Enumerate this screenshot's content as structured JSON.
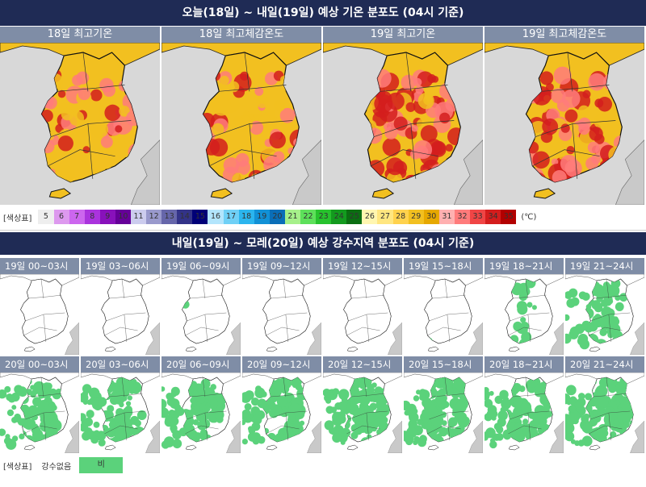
{
  "temp_section": {
    "title": "오늘(18일) ~ 내일(19일) 예상 기온 분포도 (04시 기준)"
  },
  "temp_panels": [
    {
      "label": "18일 최고기온",
      "intensity": 0.55
    },
    {
      "label": "18일 최고체감온도",
      "intensity": 0.5
    },
    {
      "label": "19일 최고기온",
      "intensity": 0.8
    },
    {
      "label": "19일 최고체감온도",
      "intensity": 0.75
    }
  ],
  "temp_legend": {
    "title": "[색상표]",
    "unit": "(℃)",
    "cells": [
      {
        "label": "5",
        "color": "#eeeeee",
        "text": "#333"
      },
      {
        "label": "6",
        "color": "#dd99ee",
        "text": "#333"
      },
      {
        "label": "7",
        "color": "#cc66ee",
        "text": "#333"
      },
      {
        "label": "8",
        "color": "#aa33dd",
        "text": "#333"
      },
      {
        "label": "9",
        "color": "#8811bb",
        "text": "#333"
      },
      {
        "label": "10",
        "color": "#660099",
        "text": "#333"
      },
      {
        "label": "11",
        "color": "#ccccee",
        "text": "#333"
      },
      {
        "label": "12",
        "color": "#9999cc",
        "text": "#333"
      },
      {
        "label": "13",
        "color": "#6666aa",
        "text": "#333"
      },
      {
        "label": "14",
        "color": "#333388",
        "text": "#333"
      },
      {
        "label": "15",
        "color": "#000077",
        "text": "#333"
      },
      {
        "label": "16",
        "color": "#b3e5fc",
        "text": "#333"
      },
      {
        "label": "17",
        "color": "#6fd0f6",
        "text": "#333"
      },
      {
        "label": "18",
        "color": "#2bb5ee",
        "text": "#333"
      },
      {
        "label": "19",
        "color": "#1191d6",
        "text": "#333"
      },
      {
        "label": "20",
        "color": "#0a6eb8",
        "text": "#333"
      },
      {
        "label": "21",
        "color": "#a6f08a",
        "text": "#333"
      },
      {
        "label": "22",
        "color": "#5de05a",
        "text": "#333"
      },
      {
        "label": "23",
        "color": "#27c22d",
        "text": "#333"
      },
      {
        "label": "24",
        "color": "#139a1e",
        "text": "#333"
      },
      {
        "label": "25",
        "color": "#0b6e12",
        "text": "#333"
      },
      {
        "label": "26",
        "color": "#fff6b0",
        "text": "#333"
      },
      {
        "label": "27",
        "color": "#ffe680",
        "text": "#333"
      },
      {
        "label": "28",
        "color": "#ffd24d",
        "text": "#333"
      },
      {
        "label": "29",
        "color": "#f2c020",
        "text": "#333"
      },
      {
        "label": "30",
        "color": "#e6a800",
        "text": "#333"
      },
      {
        "label": "31",
        "color": "#ffb0b0",
        "text": "#333"
      },
      {
        "label": "32",
        "color": "#ff7b7b",
        "text": "#333"
      },
      {
        "label": "33",
        "color": "#f04545",
        "text": "#333"
      },
      {
        "label": "34",
        "color": "#d41d1d",
        "text": "#333"
      },
      {
        "label": "35",
        "color": "#b20000",
        "text": "#333"
      }
    ]
  },
  "rain_section": {
    "title": "내일(19일) ~ 모레(20일) 예상 강수지역 분포도 (04시 기준)"
  },
  "rain_panels": [
    {
      "label": "19일 00~03시",
      "coverage": 0.0
    },
    {
      "label": "19일 03~06시",
      "coverage": 0.0
    },
    {
      "label": "19일 06~09시",
      "coverage": 0.01
    },
    {
      "label": "19일 09~12시",
      "coverage": 0.0
    },
    {
      "label": "19일 12~15시",
      "coverage": 0.0
    },
    {
      "label": "19일 15~18시",
      "coverage": 0.01
    },
    {
      "label": "19일 18~21시",
      "coverage": 0.2
    },
    {
      "label": "19일 21~24시",
      "coverage": 0.5
    },
    {
      "label": "20일 00~03시",
      "coverage": 0.55
    },
    {
      "label": "20일 03~06시",
      "coverage": 0.65
    },
    {
      "label": "20일 06~09시",
      "coverage": 0.6
    },
    {
      "label": "20일 09~12시",
      "coverage": 0.7
    },
    {
      "label": "20일 12~15시",
      "coverage": 0.75
    },
    {
      "label": "20일 15~18시",
      "coverage": 0.8
    },
    {
      "label": "20일 18~21시",
      "coverage": 0.85
    },
    {
      "label": "20일 21~24시",
      "coverage": 0.9
    }
  ],
  "rain_legend": {
    "title": "[색상표]",
    "none_label": "강수없음",
    "rain_label": "비",
    "rain_color": "#5bd27b"
  },
  "colors": {
    "header_bg": "#1f2b55",
    "label_bg": "#7f8da6",
    "land_hot": "#f2c020",
    "land_hotter": "#ff7b7b",
    "land_hottest": "#d41d1d",
    "neighbour_land": "#c9c9c9",
    "sea_temp": "#d8d8d8",
    "sea_rain": "#ffffff"
  }
}
